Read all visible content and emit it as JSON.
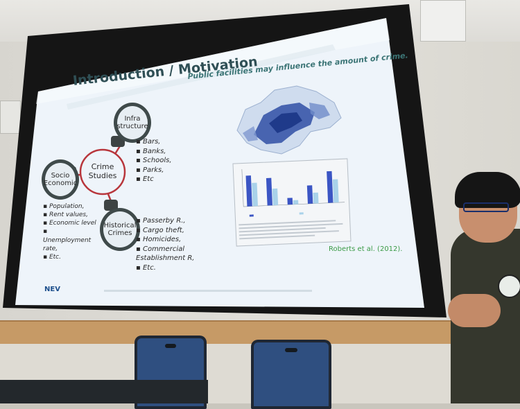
{
  "slide": {
    "title": "Introduction / Motivation",
    "subtitle": "Public facilities may influence the amount of crime.",
    "center_node": "Crime Studies",
    "nodes": {
      "infra": "Infra structure",
      "socio": "Socio Economic",
      "historical": "Historical Crimes"
    },
    "infra_list": [
      "Bars,",
      "Banks,",
      "Schools,",
      "Parks,",
      "Etc"
    ],
    "socio_list": [
      "Population,",
      "Rent values,",
      "Economic level",
      "Unemployment rate,",
      "Etc."
    ],
    "historical_list": [
      "Passerby R.,",
      "Cargo theft,",
      "Homicides,",
      "Commercial Establishment R,",
      "Etc."
    ],
    "citation": "Roberts et al. (2012).",
    "footer_logo": "NEV",
    "colors": {
      "slide_background": "#eef4fa",
      "ring_red": "#b8363c",
      "bubble_border": "#3f4a4a",
      "title_color": "#2f4f55",
      "subtitle_color": "#3c7576",
      "citation_color": "#3b9b47",
      "bar_dark": "#3b55c4",
      "bar_light": "#a9d2ea"
    }
  },
  "chart_data": {
    "type": "bar",
    "categories": [
      "",
      "",
      "",
      "",
      ""
    ],
    "series": [
      {
        "values": [
          37,
          33,
          8,
          22,
          38
        ]
      },
      {
        "values": [
          28,
          20,
          5,
          13,
          28
        ]
      }
    ],
    "ylim": [
      0,
      45
    ]
  }
}
